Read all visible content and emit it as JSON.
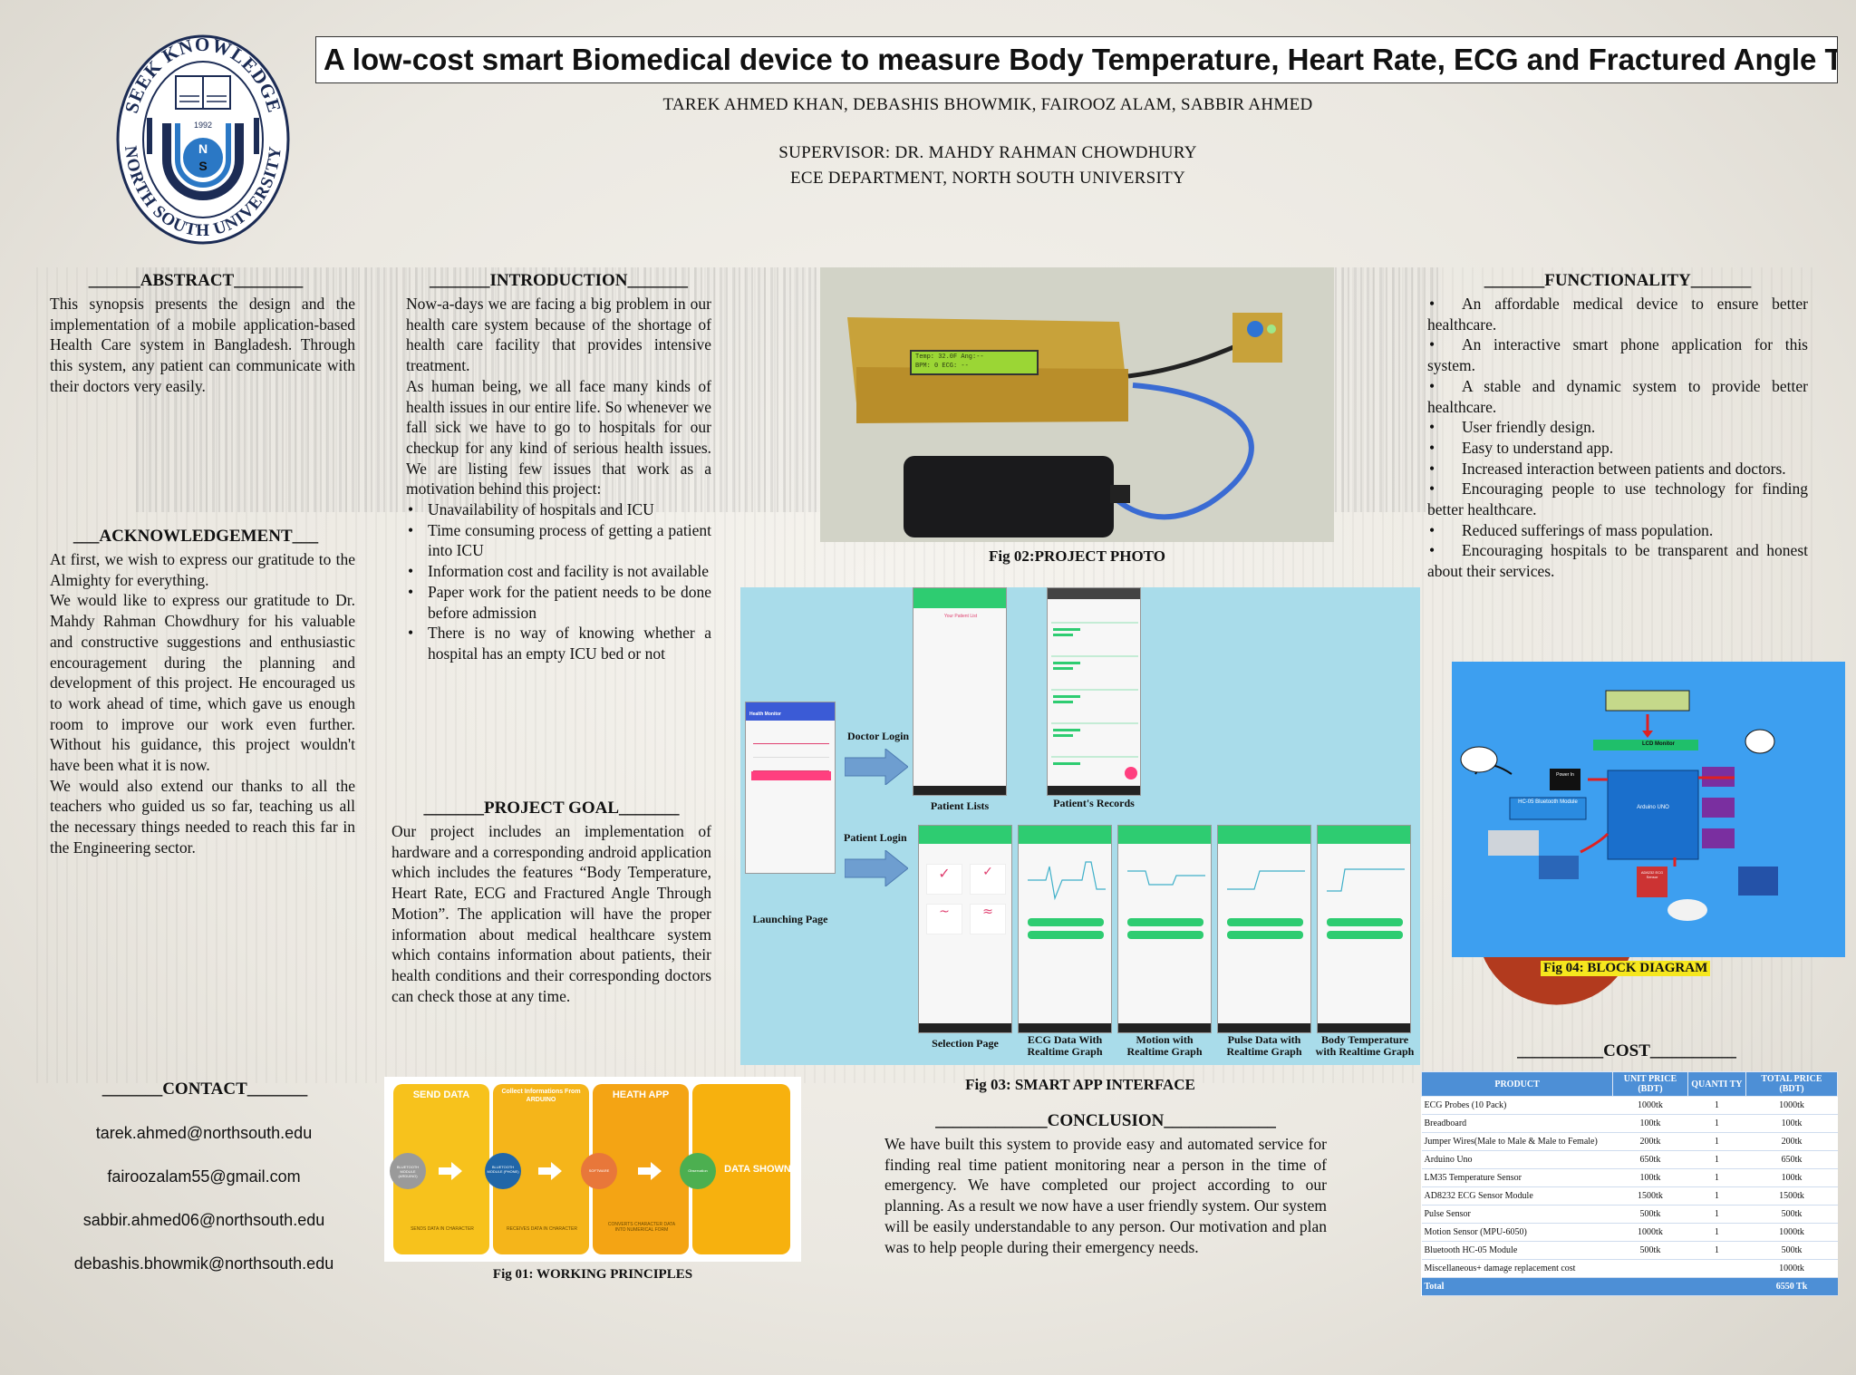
{
  "header": {
    "title": "A low-cost smart Biomedical device to measure Body Temperature, Heart Rate, ECG and Fractured Angle Through Motion",
    "authors": "TAREK AHMED KHAN, DEBASHIS BHOWMIK, FAIROOZ ALAM, SABBIR AHMED",
    "supervisor": "SUPERVISOR: DR. MAHDY RAHMAN CHOWDHURY",
    "department": "ECE DEPARTMENT, NORTH SOUTH UNIVERSITY"
  },
  "logo": {
    "top_text": "SEEK KNOWLEDGE",
    "bottom_text": "NORTH SOUTH UNIVERSITY",
    "year": "1992",
    "letter_n": "N",
    "letter_s": "S"
  },
  "abstract": {
    "heading": "ABSTRACT",
    "text": "This synopsis presents the design and the implementation of a mobile application-based Health Care system in Bangladesh. Through this system, any patient can communicate with their doctors very easily."
  },
  "acknowledgement": {
    "heading": "ACKNOWLEDGEMENT",
    "p1": "At first, we wish to express our gratitude to the Almighty for everything.",
    "p2": "We would like to express our gratitude to Dr. Mahdy Rahman Chowdhury for his valuable and constructive suggestions and enthusiastic encouragement during the planning and development of this project. He encouraged us to work ahead of time, which gave us enough room to improve our work even further. Without his guidance, this project wouldn't have been what it is now.",
    "p3": "We would also extend our thanks to all the teachers who guided us so far, teaching us all the necessary things needed to reach this far in the Engineering sector."
  },
  "contact": {
    "heading": "CONTACT",
    "emails": [
      "tarek.ahmed@northsouth.edu",
      "fairoozalam55@gmail.com",
      "sabbir.ahmed06@northsouth.edu",
      "debashis.bhowmik@northsouth.edu"
    ]
  },
  "introduction": {
    "heading": "INTRODUCTION",
    "p1": "Now-a-days we are facing a big problem in our health care system because of the shortage of health care facility that provides intensive treatment.",
    "p2": "As human being, we all face many kinds of health issues in our entire life. So whenever we fall sick we have to go to hospitals for our checkup for any kind of serious health issues. We are listing few issues that work as a motivation behind this project:",
    "bullets": [
      "Unavailability of hospitals and ICU",
      "Time consuming process of getting a patient into ICU",
      "Information cost and facility is not available",
      "Paper work for the patient needs to be done before admission",
      "There is no way of knowing whether a hospital has an empty ICU bed or not"
    ]
  },
  "project_goal": {
    "heading": "PROJECT GOAL",
    "text": "Our project includes an implementation of hardware and a corresponding android application which includes the features “Body Temperature, Heart Rate, ECG and Fractured Angle Through Motion”. The application will have the proper information about medical healthcare system which contains information about patients, their health conditions and their corresponding doctors can check those at any time."
  },
  "fig01": {
    "caption": "Fig 01: WORKING PRINCIPLES",
    "cols": [
      {
        "head": "SEND DATA",
        "node": "BLUETOOTH MODULE (ARDUINO)",
        "foot": "SENDS DATA IN CHARACTER"
      },
      {
        "head": "Collect Informations From ARDUINO",
        "node": "BLUETOOTH MODULE (PHONE)",
        "foot": "RECEIVES DATA IN CHARACTER"
      },
      {
        "head": "HEATH APP",
        "node": "SOFTWARE",
        "foot": "CONVERTS CHARACTER DATA INTO NUMERICAL FORM"
      },
      {
        "head": "DATA SHOWN",
        "node": "Observation",
        "foot": ""
      }
    ]
  },
  "fig02": {
    "caption": "Fig 02:PROJECT PHOTO",
    "lcd_line1": "Temp: 32.0F  Ang:--",
    "lcd_line2": "BPM: 0  ECG: --"
  },
  "fig03": {
    "caption": "Fig 03: SMART APP INTERFACE",
    "doctor_login": "Doctor Login",
    "patient_login": "Patient Login",
    "launching_page": "Launching Page",
    "launch_app_title": "Health Monitor",
    "patient_lists": "Patient Lists",
    "patient_list_header": "Your Patient List",
    "patients_records": "Patient's Records",
    "selection_page": "Selection Page",
    "ecg": "ECG Data With Realtime Graph",
    "motion": "Motion with Realtime Graph",
    "pulse": "Pulse Data with Realtime Graph",
    "temp": "Body Temperature with Realtime Graph"
  },
  "functionality": {
    "heading": "FUNCTIONALITY",
    "items": [
      "An affordable medical device to ensure better healthcare.",
      "An interactive smart phone application for this system.",
      "A stable and dynamic system to provide better healthcare.",
      "User friendly design.",
      "Easy to understand app.",
      "Increased interaction between patients and doctors.",
      "Encouraging people to use technology for finding better healthcare.",
      "Reduced sufferings of mass population.",
      "Encouraging hospitals to be transparent and honest about their services."
    ]
  },
  "fig04": {
    "caption": "Fig 04: BLOCK DIAGRAM",
    "lcd": "LCD Monitor",
    "arduino": "Arduino UNO",
    "bt": "HC-05 Bluetooth Module",
    "power": "Power In",
    "ecg": "AD8232 ECG Sensor"
  },
  "cost": {
    "heading": "COST",
    "headers": [
      "PRODUCT",
      "UNIT PRICE (BDT)",
      "QUANTI TY",
      "TOTAL PRICE (BDT)"
    ],
    "rows": [
      [
        "ECG Probes (10 Pack)",
        "1000tk",
        "1",
        "1000tk"
      ],
      [
        "Breadboard",
        "100tk",
        "1",
        "100tk"
      ],
      [
        "Jumper Wires(Male to Male & Male to Female)",
        "200tk",
        "1",
        "200tk"
      ],
      [
        "Arduino Uno",
        "650tk",
        "1",
        "650tk"
      ],
      [
        "LM35 Temperature Sensor",
        "100tk",
        "1",
        "100tk"
      ],
      [
        "AD8232 ECG Sensor Module",
        "1500tk",
        "1",
        "1500tk"
      ],
      [
        "Pulse Sensor",
        "500tk",
        "1",
        "500tk"
      ],
      [
        "Motion Sensor (MPU-6050)",
        "1000tk",
        "1",
        "1000tk"
      ],
      [
        "Bluetooth HC-05 Module",
        "500tk",
        "1",
        "500tk"
      ],
      [
        "Miscellaneous+ damage replacement cost",
        "",
        "",
        "1000tk"
      ]
    ],
    "total_label": "Total",
    "total_value": "6550 Tk"
  },
  "conclusion": {
    "heading": "CONCLUSION",
    "text": "We have built this system to provide easy and automated service for finding real time patient monitoring near a person in the time of emergency. We have completed our project according to our planning. As a result we now have a user friendly system. Our system will be easily understandable to any person. Our motivation and plan was to help people during their emergency needs."
  },
  "colors": {
    "app_bg": "#a9dcea",
    "diagram_bg": "#3d9ff0",
    "table_head": "#4d8fd6",
    "app_green": "#2ecc71",
    "wp_yellow": "#f7c21c",
    "wp_orange": "#f4a414"
  }
}
